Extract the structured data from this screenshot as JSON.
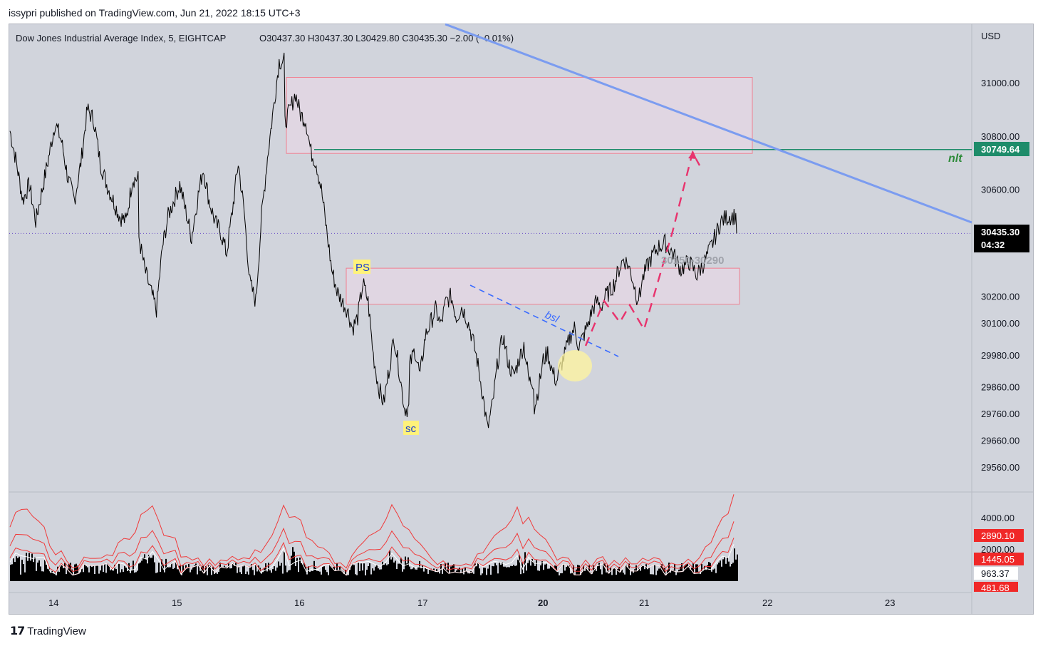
{
  "header": {
    "publisher": "issypri published on TradingView.com, Jun 21, 2022 18:15 UTC+3"
  },
  "legend": {
    "symbol": "Dow Jones Industrial Average Index, 5, EIGHTCAP",
    "ohlc": "O30437.30  H30437.30  L30429.80  C30435.30  −2.00 (−0.01%)"
  },
  "footer": {
    "logo_text": "TradingView"
  },
  "annotations": {
    "ps": "PS",
    "sc": "sc",
    "bsl": "bsl",
    "zone_label": "30150-30290",
    "nlt": "nlt"
  },
  "colors": {
    "background": "#d1d4dc",
    "price_line": "#000000",
    "trend_line": "#7b9cf0",
    "nlt_line": "#1e8c6a",
    "zone_fill": "#e8d8e6",
    "zone_border": "#f08090",
    "projection": "#e8336d",
    "bsl_line": "#3a6bff",
    "highlight": "#fff59d",
    "indicator_line": "#f03a3a"
  },
  "chart_data": {
    "type": "line",
    "title": "Dow Jones Industrial Average Index, 5, EIGHTCAP",
    "currency": "USD",
    "x_ticks": [
      "14",
      "15",
      "16",
      "17",
      "20",
      "21",
      "22",
      "23"
    ],
    "y_ticks": [
      "31000.00",
      "30800.00",
      "30600.00",
      "30200.00",
      "30100.00",
      "29980.00",
      "29860.00",
      "29760.00",
      "29660.00",
      "29560.00"
    ],
    "ylim": [
      29470,
      31190
    ],
    "series": [
      {
        "values_by_day": [
          {
            "day": "14",
            "points": [
              30820,
              30700,
              30560,
              30620,
              30480,
              30600,
              30720,
              30850,
              30780,
              30640,
              30560,
              30700,
              30900,
              30860,
              30700,
              30620,
              30560,
              30500,
              30480,
              30640
            ]
          },
          {
            "day": "15",
            "points": [
              30420,
              30300,
              30220,
              30150,
              30380,
              30500,
              30560,
              30620,
              30520,
              30420,
              30560,
              30680,
              30560,
              30480,
              30440,
              30360,
              30520,
              30700,
              30520,
              30250,
              30180,
              30500,
              30720,
              30900,
              31080
            ]
          },
          {
            "day": "16",
            "points": [
              30850,
              30900,
              30960,
              30880,
              30860,
              30740,
              30700,
              30600,
              30450,
              30300,
              30220,
              30180,
              30150,
              30080,
              30120,
              30250,
              30180,
              29980,
              29860,
              29800,
              29920,
              30050,
              29920,
              29780
            ]
          },
          {
            "day": "17",
            "points": [
              29940,
              30000,
              29900,
              30050,
              30100,
              30150,
              30090,
              30180,
              30200,
              30120,
              30160,
              30120,
              30050,
              29960,
              29840,
              29700,
              29800,
              29960,
              30050,
              29950,
              29900,
              29960,
              30020,
              29880
            ]
          },
          {
            "day": "20",
            "points": [
              29780,
              29860,
              29960,
              29990,
              29920,
              29880,
              29940,
              29990,
              30050,
              30080,
              30010,
              30050,
              30090,
              30150,
              30180,
              30160,
              30200,
              30220,
              30250,
              30300,
              30340,
              30320,
              30270,
              30200
            ]
          },
          {
            "day": "21",
            "points": [
              30250,
              30330,
              30380,
              30400,
              30360,
              30300,
              30330,
              30280,
              30330,
              30400,
              30480,
              30500
            ]
          }
        ],
        "last": 30435.3
      }
    ],
    "price_labels": {
      "current": "30435.30",
      "countdown": "04:32",
      "nlt_level": "30749.64"
    },
    "indicator": {
      "y_ticks": [
        "4000.00",
        "2000.00"
      ],
      "labels": [
        "2890.10",
        "1445.05",
        "963.37",
        "481.68"
      ]
    },
    "drawings": {
      "trend_line_from": {
        "day": "16",
        "price": 31340
      },
      "trend_line_to": {
        "day": "22",
        "price": 30550
      },
      "nlt_price": 30749.64,
      "supply_zone": {
        "low": 30735,
        "high": 31020
      },
      "demand_zone": {
        "low": 30170,
        "high": 30305
      }
    }
  }
}
